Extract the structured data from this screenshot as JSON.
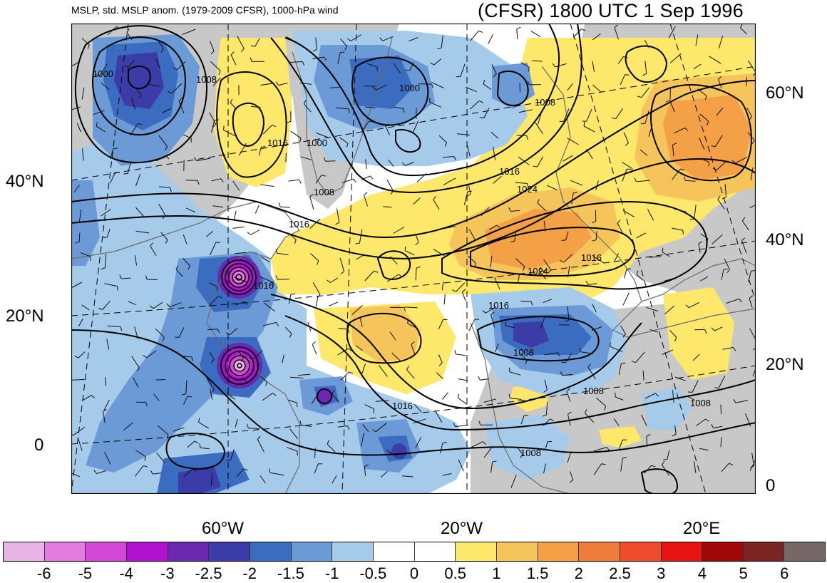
{
  "title_left": "MSLP, std. MSLP anom. (1979-2009 CFSR), 1000-hPa wind",
  "title_right": "(CFSR) 1800 UTC 1 Sep 1996",
  "lat_labels_left": [
    "40°N",
    "20°N",
    "0"
  ],
  "lat_labels_right": [
    "60°N",
    "40°N",
    "20°N",
    "0"
  ],
  "lon_labels": [
    "60°W",
    "20°W",
    "20°E"
  ],
  "isobar_labels": [
    "1000",
    "1008",
    "1016",
    "1000",
    "1000",
    "1008",
    "1008",
    "1016",
    "1024",
    "1016",
    "1024",
    "1016",
    "1016",
    "1016",
    "1008",
    "1008",
    "1008",
    "1008",
    "1016"
  ],
  "colorbar": {
    "colors": [
      "#e8b4e6",
      "#e37be0",
      "#d448d8",
      "#b010d0",
      "#6a28b0",
      "#3c3ca8",
      "#3c6cc0",
      "#6c9ad6",
      "#a6cbea",
      "#ffffff",
      "#ffffff",
      "#fde86c",
      "#f5c45a",
      "#f3a046",
      "#f07c3c",
      "#ee4c2c",
      "#e81414",
      "#a00808",
      "#7a2424",
      "#776868"
    ],
    "tick_labels": [
      "-6",
      "-5",
      "-4",
      "-3",
      "-2.5",
      "-2",
      "-1.5",
      "-1",
      "-0.5",
      "0",
      "0.5",
      "1",
      "1.5",
      "2",
      "2.5",
      "3",
      "4",
      "5",
      "6"
    ]
  },
  "colors": {
    "land_gray": "#c8c8c8",
    "ocean_white": "#ffffff",
    "contour": "#000000",
    "coast": "#6a6a6a"
  }
}
